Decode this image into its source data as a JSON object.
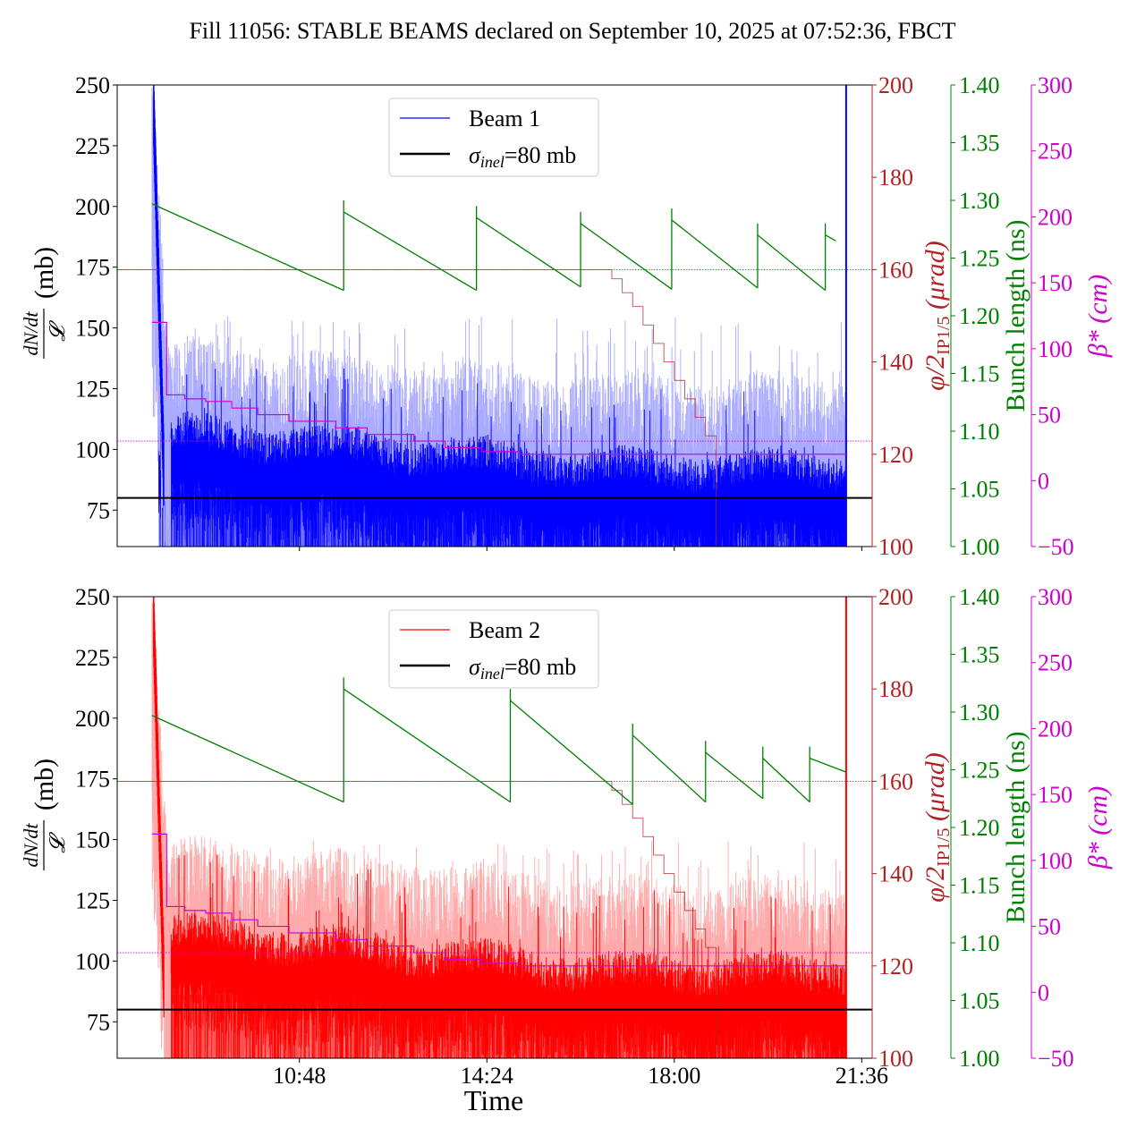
{
  "title": "Fill 11056: STABLE BEAMS declared on September 10, 2025 at 07:52:36, FBCT",
  "colors": {
    "beam1": "#0000ff",
    "beam1_light": "#aaaaff",
    "beam2": "#ff0000",
    "beam2_light": "#ffaaaa",
    "bunch_length": "#008000",
    "crossing_angle": "#b22222",
    "beta_star": "#cc00cc",
    "sigma_line": "#000000"
  },
  "chart_data": [
    {
      "type": "line",
      "panel": "top",
      "ylabel": "dN/dt / 𝓛 (mb)",
      "ylabel_parts": {
        "fraction_top": "dN/dt",
        "fraction_bottom": "𝓛",
        "unit": "(mb)"
      },
      "ylim": [
        60,
        250
      ],
      "yticks": [
        75,
        100,
        125,
        150,
        175,
        200,
        225,
        250
      ],
      "xlim_hours": [
        7.3,
        21.8
      ],
      "xticks": [
        {
          "label": "10:48",
          "hours": 10.8
        },
        {
          "label": "14:24",
          "hours": 14.4
        },
        {
          "label": "18:00",
          "hours": 18.0
        },
        {
          "label": "21:36",
          "hours": 21.6
        }
      ],
      "xtick_labels_shown": false,
      "legend": [
        {
          "label": "Beam 1",
          "color": "#0000ff"
        },
        {
          "label_sigma": "σ",
          "label_sub": "inel",
          "label_rest": "=80 mb",
          "color": "#000000"
        }
      ],
      "legend_placement": "top-center",
      "sigma_inel_mb": 80,
      "series": [
        {
          "name": "Beam 1",
          "start_hours": 8.1,
          "end_hours": 21.3,
          "mean_range": [
            85,
            100
          ],
          "spike_max": 155,
          "initial_peak": 250,
          "unit": "mb"
        }
      ],
      "right_axes": [
        {
          "label": "φ/2 IP1/5 (μrad)",
          "label_phi": "φ/2",
          "label_sub": "IP1/5",
          "label_unit": "(μrad)",
          "ylim": [
            100,
            200
          ],
          "yticks": [
            100,
            120,
            140,
            160,
            180,
            200
          ],
          "color": "#b22222",
          "reference_line": 160,
          "steps": [
            [
              7.3,
              160
            ],
            [
              16.6,
              160
            ],
            [
              16.8,
              158
            ],
            [
              17.0,
              155
            ],
            [
              17.2,
              152
            ],
            [
              17.4,
              148
            ],
            [
              17.6,
              144
            ],
            [
              17.8,
              140
            ],
            [
              18.0,
              136
            ],
            [
              18.2,
              132
            ],
            [
              18.4,
              128
            ],
            [
              18.6,
              124
            ],
            [
              18.8,
              120
            ]
          ]
        },
        {
          "label": "Bunch length (ns)",
          "ylim": [
            1.0,
            1.4
          ],
          "yticks": [
            "1.00",
            "1.05",
            "1.10",
            "1.15",
            "1.20",
            "1.25",
            "1.30",
            "1.35",
            "1.40"
          ],
          "color": "#008000",
          "segments": [
            [
              [
                7.97,
                1.297
              ],
              [
                11.65,
                1.222
              ]
            ],
            [
              [
                11.65,
                1.29
              ],
              [
                14.2,
                1.222
              ]
            ],
            [
              [
                14.2,
                1.285
              ],
              [
                16.2,
                1.225
              ]
            ],
            [
              [
                16.2,
                1.28
              ],
              [
                17.95,
                1.223
              ]
            ],
            [
              [
                17.95,
                1.283
              ],
              [
                19.6,
                1.224
              ]
            ],
            [
              [
                19.6,
                1.27
              ],
              [
                20.9,
                1.222
              ]
            ],
            [
              [
                20.9,
                1.27
              ],
              [
                21.1,
                1.265
              ]
            ]
          ]
        },
        {
          "label": "β* (cm)",
          "ylim": [
            -50,
            300
          ],
          "yticks": [
            "−50",
            "0",
            "50",
            "100",
            "150",
            "200",
            "250",
            "300"
          ],
          "color": "#cc00cc",
          "reference_line": 30,
          "steps": [
            [
              7.97,
              120
            ],
            [
              8.15,
              120
            ],
            [
              8.25,
              65
            ],
            [
              8.6,
              62
            ],
            [
              9.0,
              60
            ],
            [
              9.5,
              55
            ],
            [
              10.0,
              50
            ],
            [
              10.6,
              45
            ],
            [
              11.5,
              40
            ],
            [
              12.1,
              35
            ],
            [
              13.0,
              30
            ],
            [
              13.6,
              25
            ],
            [
              14.3,
              22
            ],
            [
              15.0,
              20
            ],
            [
              16.0,
              20
            ],
            [
              21.3,
              20
            ]
          ]
        }
      ]
    },
    {
      "type": "line",
      "panel": "bottom",
      "ylabel": "dN/dt / 𝓛 (mb)",
      "ylabel_parts": {
        "fraction_top": "dN/dt",
        "fraction_bottom": "𝓛",
        "unit": "(mb)"
      },
      "xlabel": "Time",
      "ylim": [
        60,
        250
      ],
      "yticks": [
        75,
        100,
        125,
        150,
        175,
        200,
        225,
        250
      ],
      "xlim_hours": [
        7.3,
        21.8
      ],
      "xticks": [
        {
          "label": "10:48",
          "hours": 10.8
        },
        {
          "label": "14:24",
          "hours": 14.4
        },
        {
          "label": "18:00",
          "hours": 18.0
        },
        {
          "label": "21:36",
          "hours": 21.6
        }
      ],
      "xtick_labels_shown": true,
      "legend": [
        {
          "label": "Beam 2",
          "color": "#ff0000"
        },
        {
          "label_sigma": "σ",
          "label_sub": "inel",
          "label_rest": "=80 mb",
          "color": "#000000"
        }
      ],
      "legend_placement": "top-center",
      "sigma_inel_mb": 80,
      "series": [
        {
          "name": "Beam 2",
          "start_hours": 8.3,
          "end_hours": 21.3,
          "mean_range": [
            88,
            105
          ],
          "spike_max": 150,
          "initial_peak": 250,
          "unit": "mb"
        }
      ],
      "right_axes": [
        {
          "label": "φ/2 IP1/5 (μrad)",
          "label_phi": "φ/2",
          "label_sub": "IP1/5",
          "label_unit": "(μrad)",
          "ylim": [
            100,
            200
          ],
          "yticks": [
            100,
            120,
            140,
            160,
            180,
            200
          ],
          "color": "#b22222",
          "reference_line": 160,
          "steps": [
            [
              7.3,
              160
            ],
            [
              16.6,
              160
            ],
            [
              16.8,
              158
            ],
            [
              17.0,
              155
            ],
            [
              17.2,
              152
            ],
            [
              17.4,
              148
            ],
            [
              17.6,
              144
            ],
            [
              17.8,
              140
            ],
            [
              18.0,
              136
            ],
            [
              18.2,
              132
            ],
            [
              18.4,
              128
            ],
            [
              18.6,
              124
            ],
            [
              18.8,
              120
            ]
          ]
        },
        {
          "label": "Bunch length (ns)",
          "ylim": [
            1.0,
            1.4
          ],
          "yticks": [
            "1.00",
            "1.05",
            "1.10",
            "1.15",
            "1.20",
            "1.25",
            "1.30",
            "1.35",
            "1.40"
          ],
          "color": "#008000",
          "segments": [
            [
              [
                7.97,
                1.297
              ],
              [
                11.65,
                1.222
              ]
            ],
            [
              [
                11.65,
                1.32
              ],
              [
                14.85,
                1.222
              ]
            ],
            [
              [
                14.85,
                1.31
              ],
              [
                17.2,
                1.22
              ]
            ],
            [
              [
                17.2,
                1.28
              ],
              [
                18.6,
                1.222
              ]
            ],
            [
              [
                18.6,
                1.265
              ],
              [
                19.7,
                1.225
              ]
            ],
            [
              [
                19.7,
                1.26
              ],
              [
                20.6,
                1.222
              ]
            ],
            [
              [
                20.6,
                1.26
              ],
              [
                21.3,
                1.248
              ]
            ]
          ]
        },
        {
          "label": "β* (cm)",
          "ylim": [
            -50,
            300
          ],
          "yticks": [
            "−50",
            "0",
            "50",
            "100",
            "150",
            "200",
            "250",
            "300"
          ],
          "color": "#cc00cc",
          "reference_line": 30,
          "steps": [
            [
              7.97,
              120
            ],
            [
              8.15,
              120
            ],
            [
              8.25,
              65
            ],
            [
              8.6,
              62
            ],
            [
              9.0,
              60
            ],
            [
              9.5,
              55
            ],
            [
              10.0,
              50
            ],
            [
              10.6,
              45
            ],
            [
              11.5,
              40
            ],
            [
              12.1,
              35
            ],
            [
              13.0,
              30
            ],
            [
              13.6,
              25
            ],
            [
              14.3,
              22
            ],
            [
              15.0,
              20
            ],
            [
              16.0,
              20
            ],
            [
              21.3,
              20
            ]
          ]
        }
      ]
    }
  ]
}
